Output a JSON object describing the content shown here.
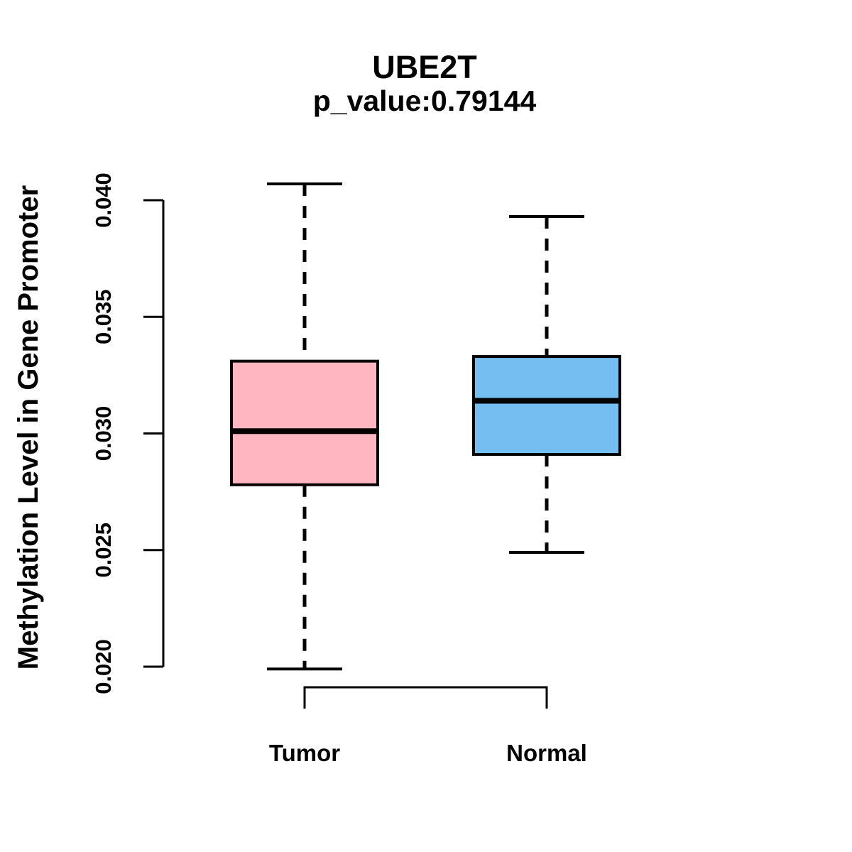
{
  "figure": {
    "title": "UBE2T",
    "subtitle": "p_value:0.79144",
    "ylabel": "Methylation Level in Gene Promoter"
  },
  "chart_data": {
    "type": "boxplot",
    "title": "UBE2T",
    "subtitle": "p_value:0.79144",
    "xlabel": "",
    "ylabel": "Methylation Level in Gene Promoter",
    "categories": [
      "Tumor",
      "Normal"
    ],
    "ylim": [
      0.02,
      0.04
    ],
    "yticks": [
      "0.020",
      "0.025",
      "0.030",
      "0.035",
      "0.040"
    ],
    "grid": false,
    "legend": "none",
    "series": [
      {
        "name": "Tumor",
        "color": "#FFB6C1",
        "stats": {
          "lower_whisker": 0.0199,
          "q1": 0.0278,
          "median": 0.0301,
          "q3": 0.0331,
          "upper_whisker": 0.0407
        }
      },
      {
        "name": "Normal",
        "color": "#74BEF2",
        "stats": {
          "lower_whisker": 0.0249,
          "q1": 0.0291,
          "median": 0.0314,
          "q3": 0.0333,
          "upper_whisker": 0.0393
        }
      }
    ],
    "stroke_color": "#000000"
  }
}
